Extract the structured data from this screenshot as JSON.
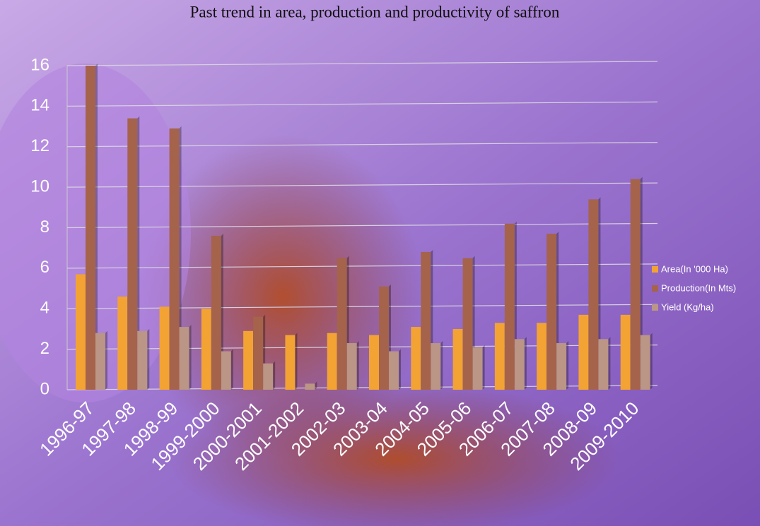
{
  "chart_data": {
    "type": "bar",
    "title": "Past trend in area, production and productivity of saffron",
    "categories": [
      "1996-97",
      "1997-98",
      "1998-99",
      "1999-2000",
      "2000-2001",
      "2001-2002",
      "2002-03",
      "2003-04",
      "2004-05",
      "2005-06",
      "2006-07",
      "2007-08",
      "2008-09",
      "2009-2010"
    ],
    "series": [
      {
        "name": "Area(In '000 Ha)",
        "color": "#f2a334",
        "values": [
          5.7,
          4.6,
          4.1,
          4.0,
          2.9,
          2.7,
          2.8,
          2.7,
          3.1,
          3.0,
          3.3,
          3.3,
          3.7,
          3.7
        ]
      },
      {
        "name": "Production(In Mts)",
        "color": "#a5634c",
        "values": [
          16,
          13.4,
          12.9,
          7.6,
          3.6,
          0,
          6.5,
          5.1,
          6.8,
          6.5,
          8.2,
          7.7,
          9.4,
          10.4
        ]
      },
      {
        "name": "Yield (Kg/ha)",
        "color": "#bb9585",
        "values": [
          2.8,
          2.9,
          3.1,
          1.9,
          1.3,
          0.3,
          2.3,
          1.9,
          2.3,
          2.1,
          2.5,
          2.3,
          2.5,
          2.7
        ]
      }
    ],
    "ylim": [
      0,
      16
    ],
    "yticks": [
      0,
      2,
      4,
      6,
      8,
      10,
      12,
      14,
      16
    ],
    "grid": true,
    "legend": "right"
  }
}
